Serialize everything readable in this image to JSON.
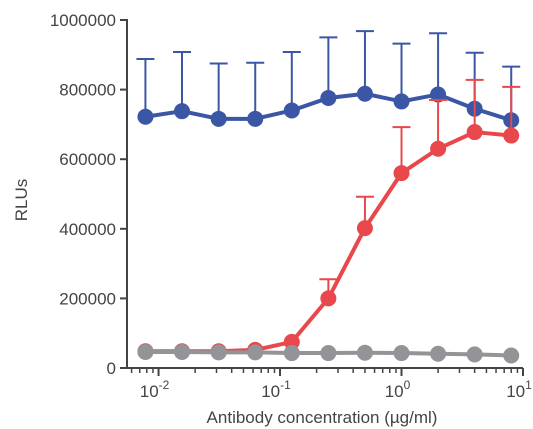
{
  "chart_data": {
    "type": "line",
    "xlabel": "Antibody concentration (µg/ml)",
    "ylabel": "RLUs",
    "x_scale": "log",
    "xlim": [
      0.0055,
      10
    ],
    "ylim": [
      0,
      1000000
    ],
    "grid": false,
    "legend": "none",
    "yticks": [
      "0",
      "200000",
      "400000",
      "600000",
      "800000",
      "1000000"
    ],
    "xticks": [
      {
        "base": "10",
        "exp": "-2",
        "value": 0.01
      },
      {
        "base": "10",
        "exp": "-1",
        "value": 0.1
      },
      {
        "base": "10",
        "exp": "0",
        "value": 1
      },
      {
        "base": "10",
        "exp": "1",
        "value": 10
      }
    ],
    "x": [
      0.0078,
      0.0156,
      0.03125,
      0.0625,
      0.125,
      0.25,
      0.5,
      1,
      2,
      4,
      8
    ],
    "series": [
      {
        "color": "#3a56a5",
        "values": [
          722000,
          738000,
          716000,
          716000,
          740000,
          776000,
          788000,
          766000,
          786000,
          745000,
          712000
        ],
        "error_upper": [
          888000,
          908000,
          875000,
          877000,
          908000,
          950000,
          968000,
          932000,
          962000,
          906000,
          866000
        ]
      },
      {
        "color": "#e8474c",
        "values": [
          48000,
          48000,
          48000,
          52000,
          75000,
          200000,
          402000,
          560000,
          630000,
          678000,
          668000
        ],
        "error_upper": [
          null,
          null,
          null,
          null,
          null,
          255000,
          492000,
          692000,
          770000,
          828000,
          808000
        ]
      },
      {
        "color": "#929497",
        "values": [
          46000,
          46000,
          45000,
          45000,
          43000,
          43000,
          44000,
          43000,
          41000,
          39000,
          36000
        ],
        "error_upper": [
          null,
          null,
          null,
          null,
          null,
          null,
          null,
          null,
          null,
          null,
          null
        ]
      }
    ]
  }
}
